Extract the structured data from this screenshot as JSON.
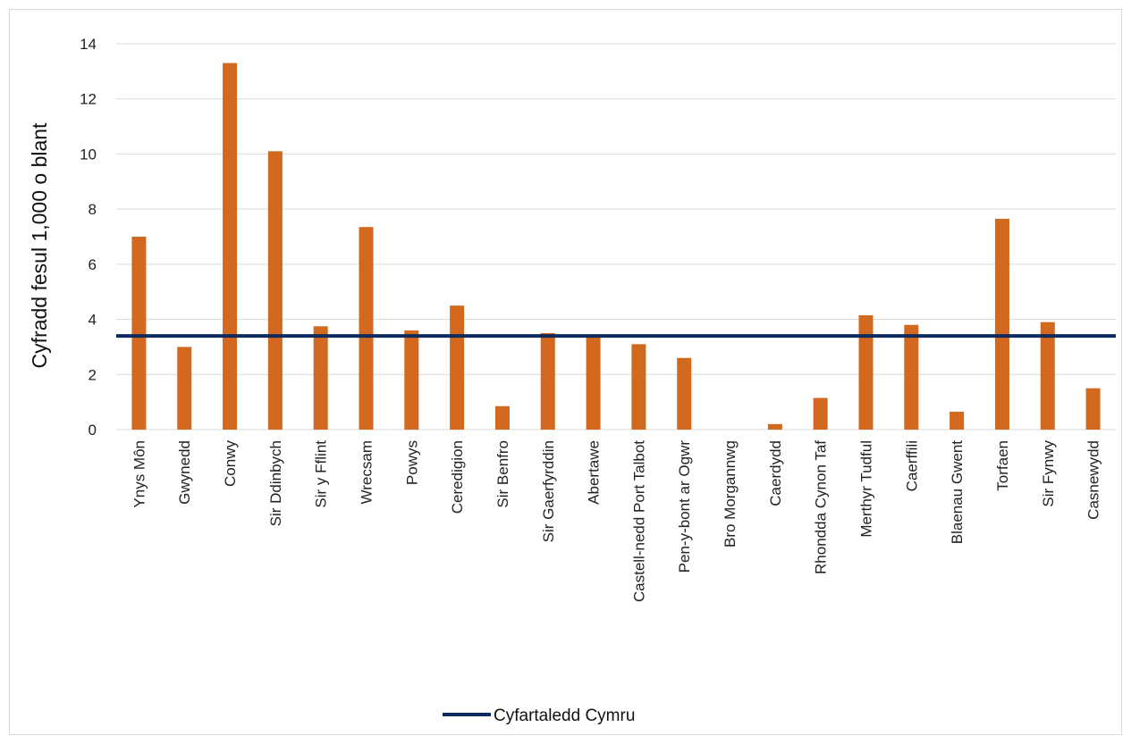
{
  "chart_data": {
    "type": "bar",
    "ylabel": "Cyfradd fesul 1,000 o blant",
    "xlabel": "",
    "ylim": [
      0,
      14
    ],
    "yticks": [
      0,
      2,
      4,
      6,
      8,
      10,
      12,
      14
    ],
    "grid": true,
    "categories": [
      "Ynys Môn",
      "Gwynedd",
      "Conwy",
      "Sir Ddinbych",
      "Sir y Fflint",
      "Wrecsam",
      "Powys",
      "Ceredigion",
      "Sir Benfro",
      "Sir Gaerfyrddin",
      "Abertawe",
      "Castell-nedd Port Talbot",
      "Pen-y-bont ar Ogwr",
      "Bro Morgannwg",
      "Caerdydd",
      "Rhondda Cynon Taf",
      "Merthyr Tudful",
      "Caerffili",
      "Blaenau Gwent",
      "Torfaen",
      "Sir Fynwy",
      "Casnewydd"
    ],
    "values": [
      7.0,
      3.0,
      13.3,
      10.1,
      3.75,
      7.35,
      3.6,
      4.5,
      0.85,
      3.5,
      3.35,
      3.1,
      2.6,
      0.0,
      0.2,
      1.15,
      4.15,
      3.8,
      0.65,
      7.65,
      3.9,
      1.5
    ],
    "average_line": {
      "name": "Cyfartaledd Cymru",
      "value": 3.4
    },
    "legend_position": "bottom",
    "colors": {
      "bar": "#D2691E",
      "average_line": "#0D2A5E",
      "grid": "#d9d9d9"
    }
  }
}
